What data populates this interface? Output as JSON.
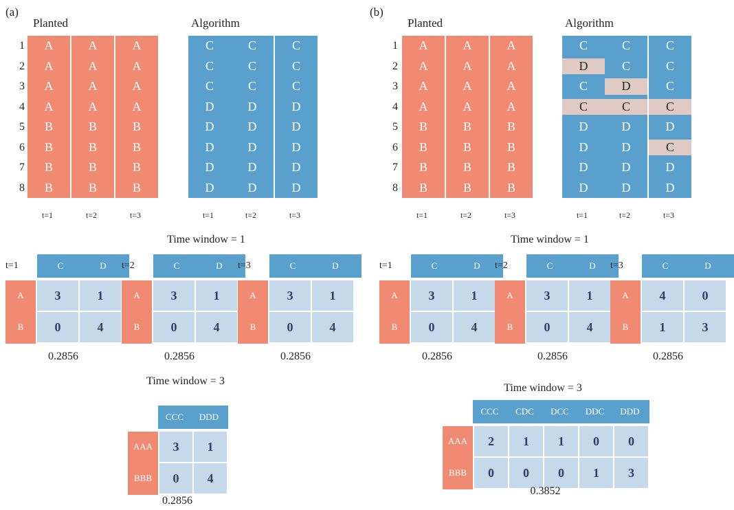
{
  "colors": {
    "planted": "#f08a72",
    "algorithm": "#5aa0cc",
    "mismatch": "#e0cbc4",
    "table_cell": "#c6d9ea",
    "table_text": "#2e4069"
  },
  "panels": [
    {
      "label": "(a)",
      "planted_title": "Planted",
      "algorithm_title": "Algorithm",
      "row_numbers": [
        "1",
        "2",
        "3",
        "4",
        "5",
        "6",
        "7",
        "8"
      ],
      "time_labels": [
        "t=1",
        "t=2",
        "t=3"
      ],
      "planted": [
        [
          "A",
          "A",
          "A",
          "A",
          "B",
          "B",
          "B",
          "B"
        ],
        [
          "A",
          "A",
          "A",
          "A",
          "B",
          "B",
          "B",
          "B"
        ],
        [
          "A",
          "A",
          "A",
          "A",
          "B",
          "B",
          "B",
          "B"
        ]
      ],
      "algorithm": [
        [
          "C",
          "C",
          "C",
          "D",
          "D",
          "D",
          "D",
          "D"
        ],
        [
          "C",
          "C",
          "C",
          "D",
          "D",
          "D",
          "D",
          "D"
        ],
        [
          "C",
          "C",
          "C",
          "D",
          "D",
          "D",
          "D",
          "D"
        ]
      ],
      "highlights": [],
      "tw1_title": "Time window = 1",
      "tw1_tables": [
        {
          "label": "t=1",
          "cols": [
            "C",
            "D"
          ],
          "rows": [
            "A",
            "B"
          ],
          "values": [
            [
              "3",
              "1"
            ],
            [
              "0",
              "4"
            ]
          ],
          "score": "0.2856"
        },
        {
          "label": "t=2",
          "cols": [
            "C",
            "D"
          ],
          "rows": [
            "A",
            "B"
          ],
          "values": [
            [
              "3",
              "1"
            ],
            [
              "0",
              "4"
            ]
          ],
          "score": "0.2856"
        },
        {
          "label": "t=3",
          "cols": [
            "C",
            "D"
          ],
          "rows": [
            "A",
            "B"
          ],
          "values": [
            [
              "3",
              "1"
            ],
            [
              "0",
              "4"
            ]
          ],
          "score": "0.2856"
        }
      ],
      "tw3_title": "Time window = 3",
      "tw3_table": {
        "cols": [
          "CCC",
          "DDD"
        ],
        "rows": [
          "AAA",
          "BBB"
        ],
        "values": [
          [
            "3",
            "1"
          ],
          [
            "0",
            "4"
          ]
        ],
        "score": "0.2856"
      }
    },
    {
      "label": "(b)",
      "planted_title": "Planted",
      "algorithm_title": "Algorithm",
      "row_numbers": [
        "1",
        "2",
        "3",
        "4",
        "5",
        "6",
        "7",
        "8"
      ],
      "time_labels": [
        "t=1",
        "t=2",
        "t=3"
      ],
      "planted": [
        [
          "A",
          "A",
          "A",
          "A",
          "B",
          "B",
          "B",
          "B"
        ],
        [
          "A",
          "A",
          "A",
          "A",
          "B",
          "B",
          "B",
          "B"
        ],
        [
          "A",
          "A",
          "A",
          "A",
          "B",
          "B",
          "B",
          "B"
        ]
      ],
      "algorithm": [
        [
          "C",
          "D",
          "C",
          "C",
          "D",
          "D",
          "D",
          "D"
        ],
        [
          "C",
          "C",
          "D",
          "C",
          "D",
          "D",
          "D",
          "D"
        ],
        [
          "C",
          "C",
          "C",
          "C",
          "D",
          "C",
          "D",
          "D"
        ]
      ],
      "highlights": [
        [
          0,
          1
        ],
        [
          1,
          2
        ],
        [
          0,
          3
        ],
        [
          1,
          3
        ],
        [
          2,
          3
        ],
        [
          2,
          5
        ]
      ],
      "tw1_title": "Time window = 1",
      "tw1_tables": [
        {
          "label": "t=1",
          "cols": [
            "C",
            "D"
          ],
          "rows": [
            "A",
            "B"
          ],
          "values": [
            [
              "3",
              "1"
            ],
            [
              "0",
              "4"
            ]
          ],
          "score": "0.2856"
        },
        {
          "label": "t=2",
          "cols": [
            "C",
            "D"
          ],
          "rows": [
            "A",
            "B"
          ],
          "values": [
            [
              "3",
              "1"
            ],
            [
              "0",
              "4"
            ]
          ],
          "score": "0.2856"
        },
        {
          "label": "t=3",
          "cols": [
            "C",
            "D"
          ],
          "rows": [
            "A",
            "B"
          ],
          "values": [
            [
              "4",
              "0"
            ],
            [
              "1",
              "3"
            ]
          ],
          "score": "0.2856"
        }
      ],
      "tw3_title": "Time window = 3",
      "tw3_table": {
        "cols": [
          "CCC",
          "CDC",
          "DCC",
          "DDC",
          "DDD"
        ],
        "rows": [
          "AAA",
          "BBB"
        ],
        "values": [
          [
            "2",
            "1",
            "1",
            "0",
            "0"
          ],
          [
            "0",
            "0",
            "0",
            "1",
            "3"
          ]
        ],
        "score": "0.3852"
      }
    }
  ]
}
